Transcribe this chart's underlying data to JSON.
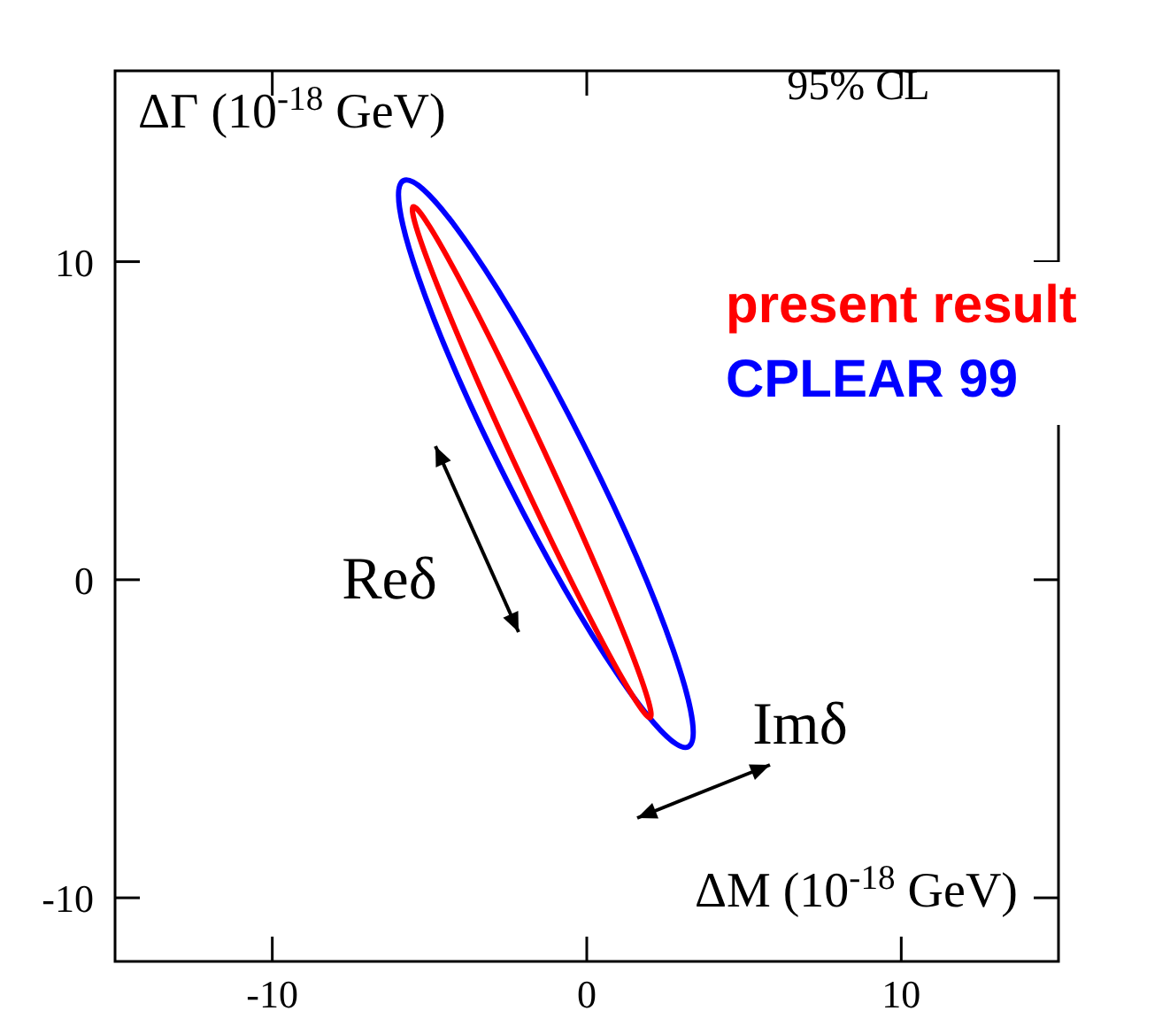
{
  "chart_data": {
    "type": "line",
    "xlabel": "ΔM   (10$^{-18}$ GeV)",
    "ylabel": "ΔΓ (10$^{-18}$ GeV)",
    "xlim": [
      -15,
      15
    ],
    "ylim": [
      -12,
      16
    ],
    "xticks": [
      -10,
      0,
      10
    ],
    "yticks": [
      -10,
      0,
      10
    ],
    "annotations": [
      "95% CL",
      "Reδ",
      "Imδ",
      "present result",
      "CPLEAR  99"
    ]
  }
}
